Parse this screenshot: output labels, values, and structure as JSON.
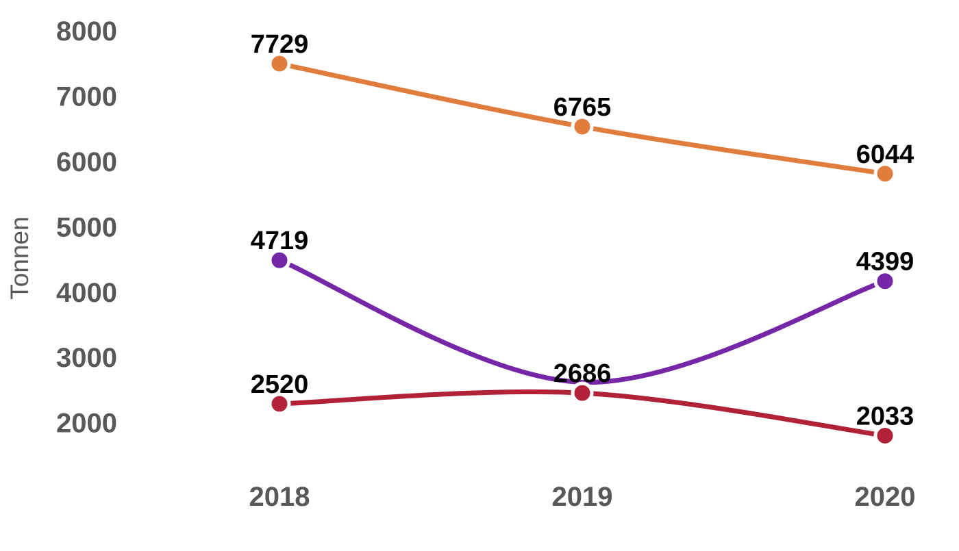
{
  "chart_data": {
    "type": "line",
    "title": "",
    "xlabel": "",
    "ylabel": "Tonnen",
    "categories": [
      "2018",
      "2019",
      "2020"
    ],
    "y_ticks": [
      8000,
      7000,
      6000,
      5000,
      4000,
      3000,
      2000
    ],
    "ylim": [
      1800,
      8250
    ],
    "grid": false,
    "legend": "none",
    "curve": "smooth",
    "series": [
      {
        "name": "orange-series",
        "color": "#E07D3C",
        "values": [
          7729,
          6765,
          6044
        ],
        "point_labels": [
          "7729",
          "6765",
          "6044"
        ]
      },
      {
        "name": "purple-series",
        "color": "#7527A8",
        "values": [
          4719,
          2850,
          4399
        ],
        "point_labels": [
          "4719",
          "",
          "4399"
        ]
      },
      {
        "name": "red-series",
        "color": "#B12239",
        "values": [
          2520,
          2686,
          2033
        ],
        "point_labels": [
          "2520",
          "2686",
          "2033"
        ]
      }
    ]
  },
  "colors": {
    "background": "#FFFFFF",
    "axis_text": "#58585A",
    "point_label_text": "#000000"
  }
}
